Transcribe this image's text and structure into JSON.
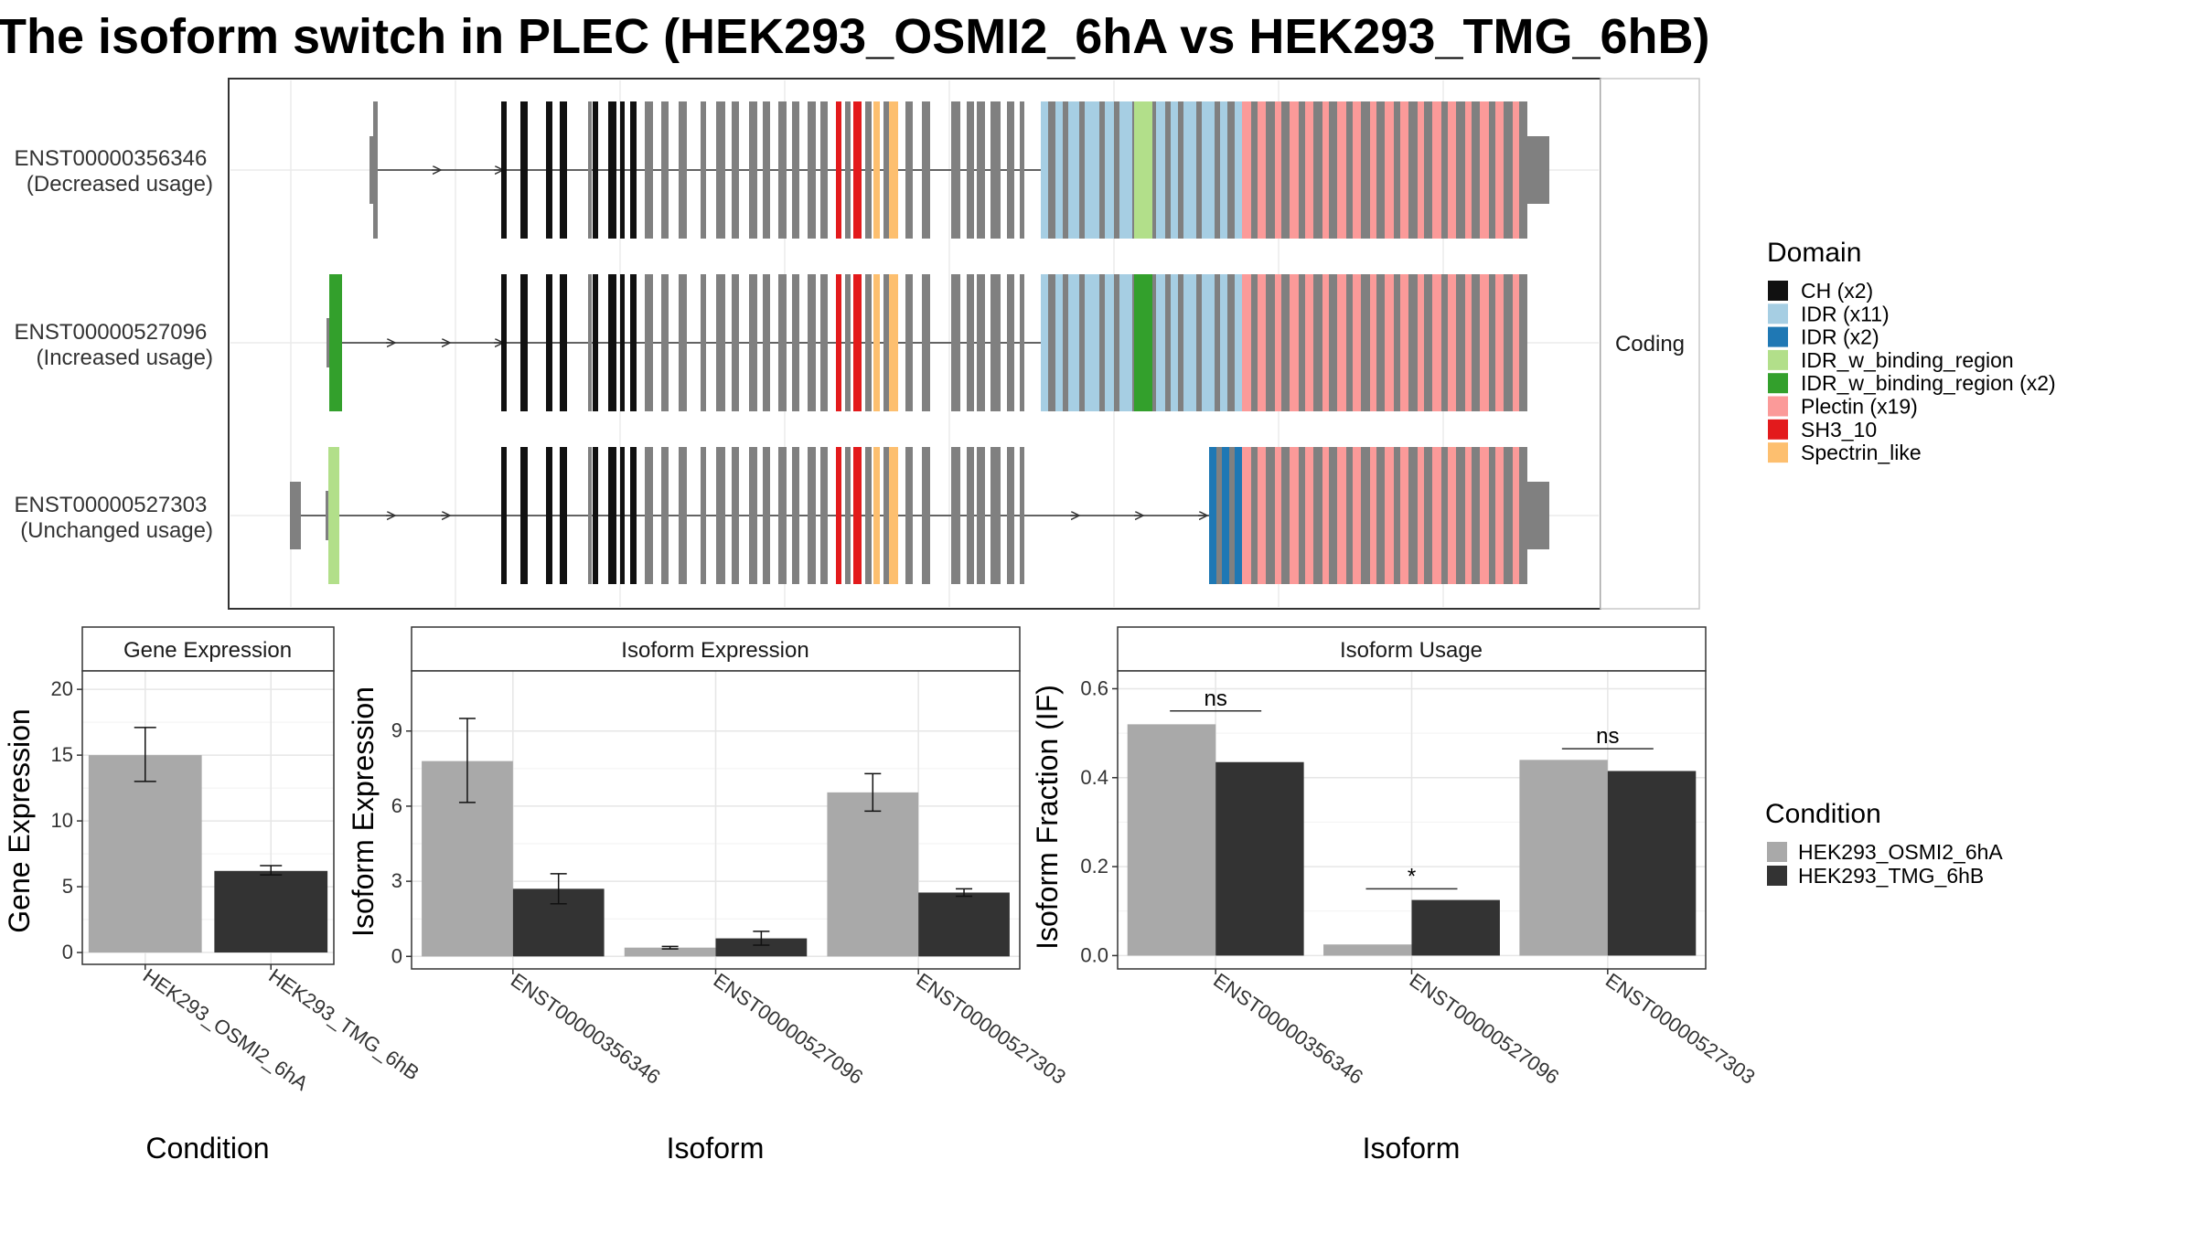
{
  "title": "The isoform switch in PLEC (HEK293_OSMI2_6hA vs HEK293_TMG_6hB)",
  "structure": {
    "facet_label": "Coding",
    "transcripts": [
      {
        "id": "ENST00000356346",
        "usage": "(Decreased usage)"
      },
      {
        "id": "ENST00000527096",
        "usage": "(Increased usage)"
      },
      {
        "id": "ENST00000527303",
        "usage": "(Unchanged usage)"
      }
    ]
  },
  "domain_legend": {
    "title": "Domain",
    "items": [
      {
        "label": "CH (x2)",
        "color": "#111111"
      },
      {
        "label": "IDR (x11)",
        "color": "#a6cee3"
      },
      {
        "label": "IDR (x2)",
        "color": "#1f78b4"
      },
      {
        "label": "IDR_w_binding_region",
        "color": "#b2df8a"
      },
      {
        "label": "IDR_w_binding_region (x2)",
        "color": "#33a02c"
      },
      {
        "label": "Plectin (x19)",
        "color": "#fb9a99"
      },
      {
        "label": "SH3_10",
        "color": "#e31a1c"
      },
      {
        "label": "Spectrin_like",
        "color": "#fdbf6f"
      }
    ]
  },
  "condition_legend": {
    "title": "Condition",
    "items": [
      {
        "label": "HEK293_OSMI2_6hA",
        "color": "#a9a9a9"
      },
      {
        "label": "HEK293_TMG_6hB",
        "color": "#333333"
      }
    ]
  },
  "chart_data": [
    {
      "type": "bar",
      "title": "Gene Expression",
      "xlabel": "Condition",
      "ylabel": "Gene Expression",
      "categories": [
        "HEK293_OSMI2_6hA",
        "HEK293_TMG_6hB"
      ],
      "values": [
        15.0,
        6.2
      ],
      "error_low": [
        13.0,
        5.9
      ],
      "error_high": [
        17.1,
        6.6
      ],
      "ylim": [
        -0.9,
        21.4
      ],
      "yticks": [
        0,
        5,
        10,
        15,
        20
      ],
      "tick_labels": [
        "0",
        "5",
        "10",
        "15",
        "20"
      ],
      "grid": true
    },
    {
      "type": "bar",
      "title": "Isoform Expression",
      "xlabel": "Isoform",
      "ylabel": "Isoform Expression",
      "categories": [
        "ENST00000356346",
        "ENST00000527096",
        "ENST00000527303"
      ],
      "series": [
        {
          "name": "HEK293_OSMI2_6hA",
          "values": [
            7.8,
            0.35,
            6.55
          ],
          "error_low": [
            6.15,
            0.3,
            5.8
          ],
          "error_high": [
            9.5,
            0.4,
            7.3
          ]
        },
        {
          "name": "HEK293_TMG_6hB",
          "values": [
            2.7,
            0.72,
            2.55
          ],
          "error_low": [
            2.1,
            0.45,
            2.4
          ],
          "error_high": [
            3.3,
            1.0,
            2.7
          ]
        }
      ],
      "ylim": [
        -0.5,
        11.4
      ],
      "yticks": [
        0,
        3,
        6,
        9
      ],
      "tick_labels": [
        "0",
        "3",
        "6",
        "9"
      ],
      "grid": true
    },
    {
      "type": "bar",
      "title": "Isoform Usage",
      "xlabel": "Isoform",
      "ylabel": "Isoform Fraction (IF)",
      "categories": [
        "ENST00000356346",
        "ENST00000527096",
        "ENST00000527303"
      ],
      "series": [
        {
          "name": "HEK293_OSMI2_6hA",
          "values": [
            0.52,
            0.025,
            0.44
          ]
        },
        {
          "name": "HEK293_TMG_6hB",
          "values": [
            0.435,
            0.125,
            0.415
          ]
        }
      ],
      "significance": [
        {
          "category": "ENST00000356346",
          "label": "ns",
          "y": 0.55
        },
        {
          "category": "ENST00000527096",
          "label": "*",
          "y": 0.15
        },
        {
          "category": "ENST00000527303",
          "label": "ns",
          "y": 0.465
        }
      ],
      "ylim": [
        -0.03,
        0.64
      ],
      "yticks": [
        0.0,
        0.2,
        0.4,
        0.6
      ],
      "tick_labels": [
        "0.0",
        "0.2",
        "0.4",
        "0.6"
      ],
      "grid": true
    }
  ]
}
